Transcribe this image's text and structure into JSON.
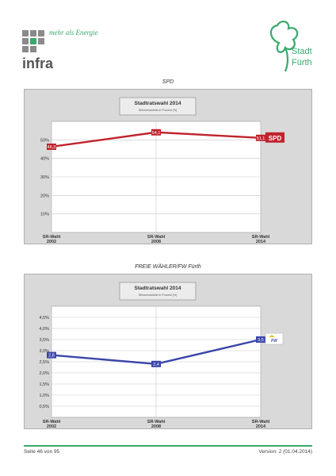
{
  "header": {
    "infra_slogan": "mehr als Energie",
    "infra_name": "infra",
    "city_line1": "Stadt",
    "city_line2": "Fürth"
  },
  "colors": {
    "spd": "#c0232c",
    "fw": "#3a46a8",
    "grid": "#c8c8c8",
    "plot_bg": "#ffffff",
    "panel_bg": "#d9d9d9",
    "accent": "#3aa86b"
  },
  "chart_data": [
    {
      "type": "line",
      "title": "SPD",
      "box_title": "Stadtratswahl 2014",
      "box_subtitle": "Stimmenanteile in Prozent (%)",
      "categories": [
        "SR-Wahl 2002",
        "SR-Wahl 2008",
        "SR-Wahl 2014"
      ],
      "category_lines": [
        [
          "SR-Wahl",
          "2002"
        ],
        [
          "SR-Wahl",
          "2008"
        ],
        [
          "SR-Wahl",
          "2014"
        ]
      ],
      "series": [
        {
          "name": "SPD",
          "values": [
            46.3,
            54.1,
            51.1
          ],
          "labels": [
            "46,3",
            "54,1",
            "51,1"
          ]
        }
      ],
      "ylim": [
        0,
        60
      ],
      "yticks": [
        10,
        20,
        30,
        40,
        50
      ],
      "ytick_labels": [
        "10%",
        "20%",
        "30%",
        "40%",
        "50%"
      ],
      "grid": true,
      "legend": "right"
    },
    {
      "type": "line",
      "title": "FREIE WÄHLER/FW Fürth",
      "box_title": "Stadtratswahl 2014",
      "box_subtitle": "Stimmenanteile in Prozent (%)",
      "categories": [
        "SR-Wahl 2002",
        "SR-Wahl 2008",
        "SR-Wahl 2014"
      ],
      "category_lines": [
        [
          "SR-Wahl",
          "2002"
        ],
        [
          "SR-Wahl",
          "2008"
        ],
        [
          "SR-Wahl",
          "2014"
        ]
      ],
      "series": [
        {
          "name": "FW",
          "values": [
            2.8,
            2.4,
            3.5
          ],
          "labels": [
            "2,8",
            "2,4",
            "3,5"
          ]
        }
      ],
      "ylim": [
        0,
        5
      ],
      "yticks": [
        0.5,
        1,
        1.5,
        2,
        2.5,
        3,
        3.5,
        4,
        4.5
      ],
      "ytick_labels": [
        "0,5%",
        "1,0%",
        "1,5%",
        "2,0%",
        "2,5%",
        "3,0%",
        "3,5%",
        "4,0%",
        "4,5%"
      ],
      "grid": true,
      "legend": "right"
    }
  ],
  "footer": {
    "left": "Seite 46 von 95",
    "right": "Version: 2 (01.04.2014)"
  }
}
